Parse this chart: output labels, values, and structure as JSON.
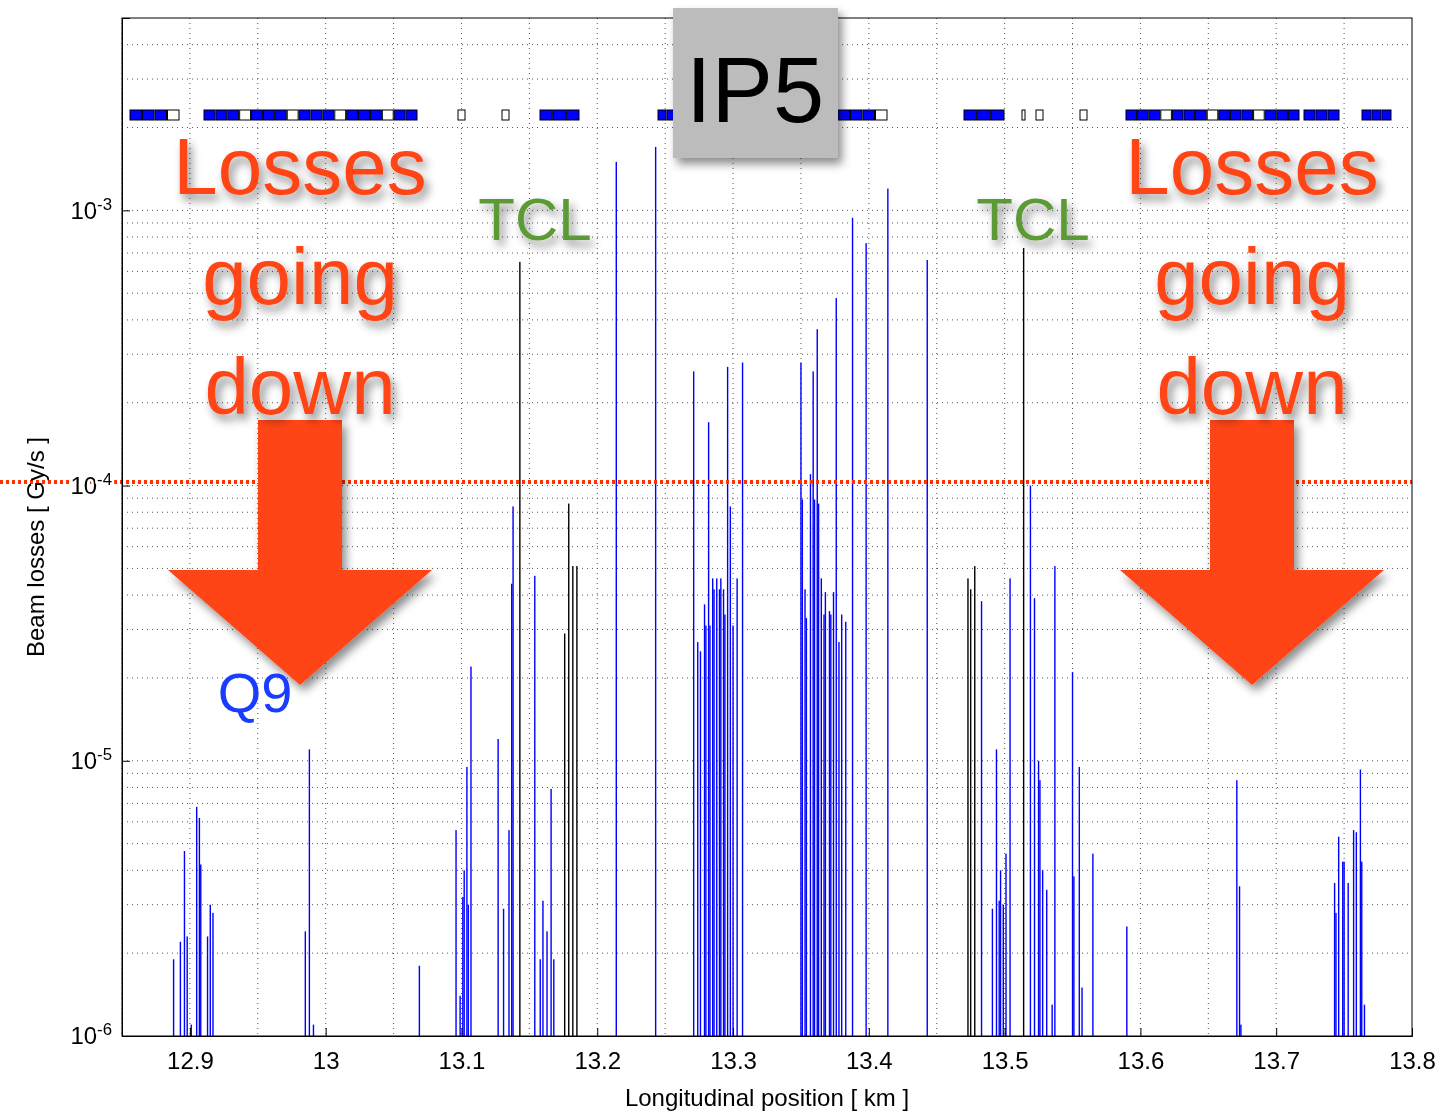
{
  "chart_data": {
    "type": "bar",
    "xlabel": "Longitudinal position [ km ]",
    "ylabel": "Beam losses [ Gy/s ]",
    "log": "y",
    "grid": true,
    "xlim": [
      12.85,
      13.8
    ],
    "xticks": [
      12.9,
      13,
      13.1,
      13.2,
      13.3,
      13.4,
      13.5,
      13.6,
      13.7,
      13.8
    ],
    "ylim": [
      1e-06,
      0.005
    ],
    "yticks": [
      {
        "value": 1e-06,
        "label": "10$^{-6}$"
      },
      {
        "value": 1e-05,
        "label": "10$^{-5}$"
      },
      {
        "value": 0.0001,
        "label": "10$^{-4}$"
      },
      {
        "value": 0.001,
        "label": "10$^{-3}$"
      }
    ],
    "ref_lines": [
      {
        "axis": "y",
        "value": 0.000103,
        "color": "#ff3300",
        "line_style": "dotted"
      }
    ],
    "annotations": [
      "IP5",
      "Losses going down",
      "TCL",
      "TCL",
      "Losses going down",
      "Q9"
    ],
    "series": [
      {
        "color": "#0000ff",
        "x": [
          12.888,
          12.893,
          12.896,
          12.898,
          12.901,
          12.905,
          12.907,
          12.908,
          12.913,
          12.915,
          12.917,
          12.985,
          12.988,
          12.991,
          13.069,
          13.096,
          13.099,
          13.101,
          13.102,
          13.104,
          13.105,
          13.107,
          13.127,
          13.131,
          13.135,
          13.137,
          13.138,
          13.154,
          13.158,
          13.16,
          13.163,
          13.166,
          13.168,
          13.214,
          13.243,
          13.271,
          13.274,
          13.276,
          13.279,
          13.28,
          13.282,
          13.283,
          13.285,
          13.286,
          13.288,
          13.29,
          13.291,
          13.293,
          13.294,
          13.296,
          13.298,
          13.3,
          13.303,
          13.307,
          13.35,
          13.351,
          13.353,
          13.354,
          13.357,
          13.359,
          13.36,
          13.362,
          13.363,
          13.365,
          13.367,
          13.368,
          13.371,
          13.372,
          13.374,
          13.376,
          13.378,
          13.38,
          13.383,
          13.388,
          13.398,
          13.414,
          13.443,
          13.483,
          13.491,
          13.494,
          13.496,
          13.497,
          13.499,
          13.501,
          13.504,
          13.519,
          13.522,
          13.525,
          13.526,
          13.528,
          13.531,
          13.535,
          13.537,
          13.55,
          13.551,
          13.555,
          13.557,
          13.565,
          13.59,
          13.671,
          13.673,
          13.674,
          13.743,
          13.744,
          13.746,
          13.749,
          13.75,
          13.753,
          13.757,
          13.759,
          13.762,
          13.763,
          13.765
        ],
        "values": [
          1.9e-06,
          2.2e-06,
          4.7e-06,
          2.3e-06,
          1.1e-06,
          6.8e-06,
          6.2e-06,
          4.2e-06,
          2.3e-06,
          3e-06,
          2.8e-06,
          2.4e-06,
          1.1e-05,
          1.1e-06,
          1.8e-06,
          5.6e-06,
          1.4e-06,
          3.2e-06,
          4e-06,
          9.5e-06,
          3e-06,
          2.2e-05,
          1.2e-05,
          2.9e-06,
          5.6e-06,
          4.4e-05,
          8.4e-05,
          4.7e-05,
          1.9e-06,
          3.1e-06,
          2.4e-06,
          7.9e-06,
          1.9e-06,
          0.0015,
          0.0017,
          0.00026,
          2.7e-05,
          2.5e-05,
          3.7e-05,
          3.1e-05,
          0.00017,
          3.1e-05,
          4.6e-05,
          4.2e-05,
          4.6e-05,
          4.2e-05,
          4.6e-05,
          4.2e-05,
          3.4e-05,
          0.00027,
          8.4e-05,
          3.1e-05,
          4.6e-05,
          0.00028,
          0.00028,
          8.9e-05,
          4.2e-05,
          3.3e-05,
          0.00011,
          0.00026,
          8.9e-05,
          0.00037,
          8.6e-05,
          4.6e-05,
          3.4e-05,
          4.1e-05,
          3.5e-05,
          3.4e-05,
          4.1e-05,
          0.00048,
          2.7e-05,
          3.4e-05,
          3.2e-05,
          0.00094,
          0.00076,
          0.0012,
          0.00066,
          3.8e-05,
          2.9e-06,
          1.1e-05,
          3.1e-06,
          4e-06,
          3e-06,
          4.6e-06,
          4.6e-05,
          0.0001,
          3.9e-05,
          1e-05,
          8.5e-06,
          4e-06,
          3.4e-06,
          1.3e-06,
          5.1e-05,
          2.1e-05,
          3.8e-06,
          9.5e-06,
          1.5e-06,
          4.6e-06,
          2.5e-06,
          8.5e-06,
          3.5e-06,
          1.1e-06,
          3.6e-06,
          2.8e-06,
          5.3e-06,
          4.3e-06,
          4.3e-06,
          3.6e-06,
          5.6e-06,
          5.5e-06,
          9.3e-06,
          4.3e-06,
          1.3e-06
        ]
      },
      {
        "color": "#000000",
        "x": [
          13.143,
          13.176,
          13.179,
          13.182,
          13.185,
          13.473,
          13.475,
          13.478,
          13.514
        ],
        "values": [
          0.00065,
          2.9e-05,
          8.6e-05,
          5.1e-05,
          5.1e-05,
          4.6e-05,
          4.2e-05,
          5.1e-05,
          0.00073
        ]
      }
    ]
  }
}
